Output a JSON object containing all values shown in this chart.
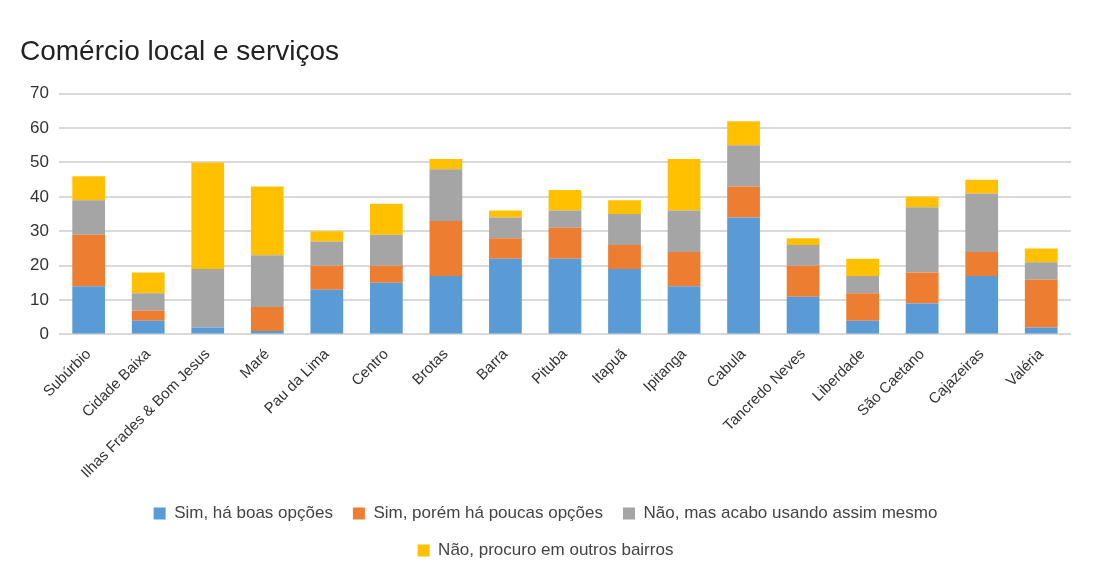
{
  "chart_data": {
    "type": "bar",
    "title": "Comércio local e serviços",
    "stacked": true,
    "categories": [
      "Subúrbio",
      "Cidade Baixa",
      "Ilhas Frades & Bom Jesus",
      "Maré",
      "Pau da Lima",
      "Centro",
      "Brotas",
      "Barra",
      "Pituba",
      "Itapuã",
      "Ipitanga",
      "Cabula",
      "Tancredo Neves",
      "Liberdade",
      "São Caetano",
      "Cajazeiras",
      "Valéria"
    ],
    "series": [
      {
        "name": "Sim, há boas opções",
        "color": "#5b9bd5",
        "values": [
          14,
          4,
          2,
          1,
          13,
          15,
          17,
          22,
          22,
          19,
          14,
          34,
          11,
          4,
          9,
          17,
          2
        ]
      },
      {
        "name": "Sim, porém há poucas opções",
        "color": "#ed7d31",
        "values": [
          15,
          3,
          0,
          7,
          7,
          5,
          16,
          6,
          9,
          7,
          10,
          9,
          9,
          8,
          9,
          7,
          14
        ]
      },
      {
        "name": "Não, mas acabo usando assim mesmo",
        "color": "#a5a5a5",
        "values": [
          10,
          5,
          17,
          15,
          7,
          9,
          15,
          6,
          5,
          9,
          12,
          12,
          6,
          5,
          19,
          17,
          5
        ]
      },
      {
        "name": "Não, procuro em outros bairros",
        "color": "#ffc000",
        "values": [
          7,
          6,
          31,
          20,
          3,
          9,
          3,
          2,
          6,
          4,
          15,
          7,
          2,
          5,
          3,
          4,
          4
        ]
      }
    ],
    "ylim": [
      0,
      70
    ],
    "yticks": [
      0,
      10,
      20,
      30,
      40,
      50,
      60,
      70
    ],
    "grid": "y",
    "legend": "bottom"
  }
}
